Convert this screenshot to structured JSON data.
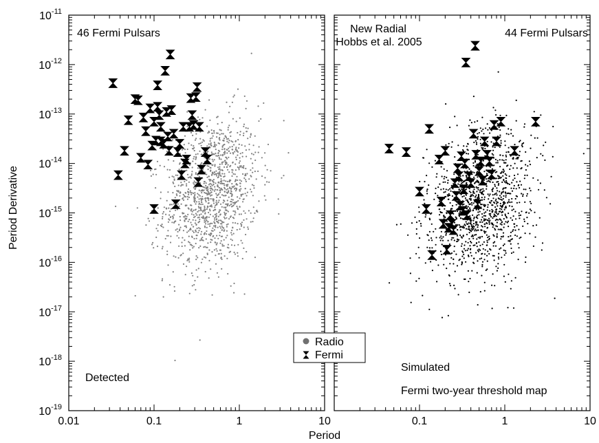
{
  "figure": {
    "xlabel": "Period",
    "ylabel": "Period Derivative",
    "x_ticks": [
      "0.01",
      "0.1",
      "1",
      "10"
    ],
    "x_ticks_right": [
      "0.1",
      "1",
      "10"
    ],
    "y_tick_exponents": [
      "-19",
      "-18",
      "-17",
      "-16",
      "-15",
      "-14",
      "-13",
      "-12",
      "-11"
    ],
    "y_tick_base": "10",
    "colors": {
      "radio_detected": "#808080",
      "radio_simulated": "#000000",
      "fermi": "#000000",
      "axes": "#000000"
    },
    "legend": {
      "placement": "bottom-center",
      "entries": [
        "Radio",
        "Fermi"
      ]
    }
  },
  "left_panel": {
    "label_top": "46 Fermi Pulsars",
    "label_bottom": "Detected"
  },
  "right_panel": {
    "label_top_center_1": "New Radial",
    "label_top_center_2": "Hobbs et al. 2005",
    "label_top_right": "44 Fermi Pulsars",
    "label_bottom_1": "Simulated",
    "label_bottom_2": "Fermi two-year threshold map"
  },
  "chart_data": [
    {
      "type": "scatter",
      "panel": "left",
      "x_scale": "log",
      "y_scale": "log",
      "xlim": [
        0.01,
        10
      ],
      "ylim": [
        1e-19,
        1e-11
      ],
      "series": [
        {
          "name": "Fermi",
          "marker": "hourglass",
          "points": [
            [
              0.033,
              4.2e-13
            ],
            [
              0.038,
              5.8e-15
            ],
            [
              0.045,
              1.8e-14
            ],
            [
              0.05,
              7.5e-14
            ],
            [
              0.06,
              2e-13
            ],
            [
              0.065,
              1.9e-13
            ],
            [
              0.07,
              1.3e-14
            ],
            [
              0.075,
              8.5e-14
            ],
            [
              0.08,
              4.5e-14
            ],
            [
              0.085,
              9.5e-15
            ],
            [
              0.09,
              1.3e-13
            ],
            [
              0.095,
              2.3e-14
            ],
            [
              0.1,
              7e-14
            ],
            [
              0.1,
              1.2e-15
            ],
            [
              0.105,
              2.9e-14
            ],
            [
              0.11,
              1.4e-13
            ],
            [
              0.11,
              3.8e-13
            ],
            [
              0.115,
              9.5e-14
            ],
            [
              0.12,
              2.8e-14
            ],
            [
              0.12,
              5.5e-14
            ],
            [
              0.13,
              2.5e-14
            ],
            [
              0.135,
              7.5e-13
            ],
            [
              0.14,
              1.1e-13
            ],
            [
              0.145,
              3.5e-14
            ],
            [
              0.15,
              1.8e-14
            ],
            [
              0.155,
              1.6e-12
            ],
            [
              0.16,
              1.2e-13
            ],
            [
              0.17,
              4e-14
            ],
            [
              0.18,
              1.5e-15
            ],
            [
              0.19,
              1.7e-14
            ],
            [
              0.2,
              2.5e-14
            ],
            [
              0.21,
              5.8e-15
            ],
            [
              0.22,
              5.5e-14
            ],
            [
              0.23,
              1e-14
            ],
            [
              0.24,
              1.2e-14
            ],
            [
              0.26,
              5.5e-14
            ],
            [
              0.27,
              2.1e-13
            ],
            [
              0.28,
              9.5e-14
            ],
            [
              0.29,
              6e-14
            ],
            [
              0.31,
              2.2e-13
            ],
            [
              0.32,
              3.5e-13
            ],
            [
              0.33,
              4.2e-15
            ],
            [
              0.34,
              5.5e-14
            ],
            [
              0.36,
              7.5e-15
            ],
            [
              0.4,
              1.7e-14
            ],
            [
              0.42,
              1.2e-14
            ]
          ]
        },
        {
          "name": "Radio",
          "marker": "dot",
          "points": []
        }
      ]
    },
    {
      "type": "scatter",
      "panel": "right",
      "x_scale": "log",
      "y_scale": "log",
      "xlim": [
        0.01,
        10
      ],
      "ylim": [
        1e-19,
        1e-11
      ],
      "series": [
        {
          "name": "Fermi",
          "marker": "hourglass",
          "points": [
            [
              0.044,
              2e-14
            ],
            [
              0.07,
              1.7e-14
            ],
            [
              0.1,
              2.7e-15
            ],
            [
              0.12,
              1.2e-15
            ],
            [
              0.13,
              5e-14
            ],
            [
              0.14,
              1.4e-16
            ],
            [
              0.17,
              1.2e-14
            ],
            [
              0.18,
              1.7e-15
            ],
            [
              0.19,
              6e-16
            ],
            [
              0.2,
              1.8e-14
            ],
            [
              0.21,
              1.8e-16
            ],
            [
              0.22,
              5e-16
            ],
            [
              0.23,
              9e-16
            ],
            [
              0.24,
              6e-16
            ],
            [
              0.25,
              4.5e-16
            ],
            [
              0.26,
              4e-15
            ],
            [
              0.27,
              2.2e-15
            ],
            [
              0.28,
              8e-15
            ],
            [
              0.29,
              5.5e-15
            ],
            [
              0.3,
              1.4e-15
            ],
            [
              0.31,
              1.4e-14
            ],
            [
              0.32,
              1.1e-15
            ],
            [
              0.33,
              3e-15
            ],
            [
              0.34,
              1e-14
            ],
            [
              0.35,
              1.1e-12
            ],
            [
              0.36,
              9e-16
            ],
            [
              0.38,
              5.5e-15
            ],
            [
              0.4,
              4e-15
            ],
            [
              0.43,
              4e-14
            ],
            [
              0.45,
              2.4e-12
            ],
            [
              0.46,
              1.5e-14
            ],
            [
              0.48,
              1.5e-15
            ],
            [
              0.5,
              7e-15
            ],
            [
              0.52,
              1.1e-14
            ],
            [
              0.55,
              4.5e-15
            ],
            [
              0.58,
              2.8e-14
            ],
            [
              0.62,
              1.5e-14
            ],
            [
              0.66,
              1.1e-14
            ],
            [
              0.7,
              6e-15
            ],
            [
              0.75,
              6e-14
            ],
            [
              0.8,
              2.8e-14
            ],
            [
              0.9,
              7e-14
            ],
            [
              1.3,
              1.8e-14
            ],
            [
              2.3,
              7e-14
            ]
          ]
        },
        {
          "name": "Radio",
          "marker": "dot",
          "points": []
        }
      ]
    }
  ]
}
